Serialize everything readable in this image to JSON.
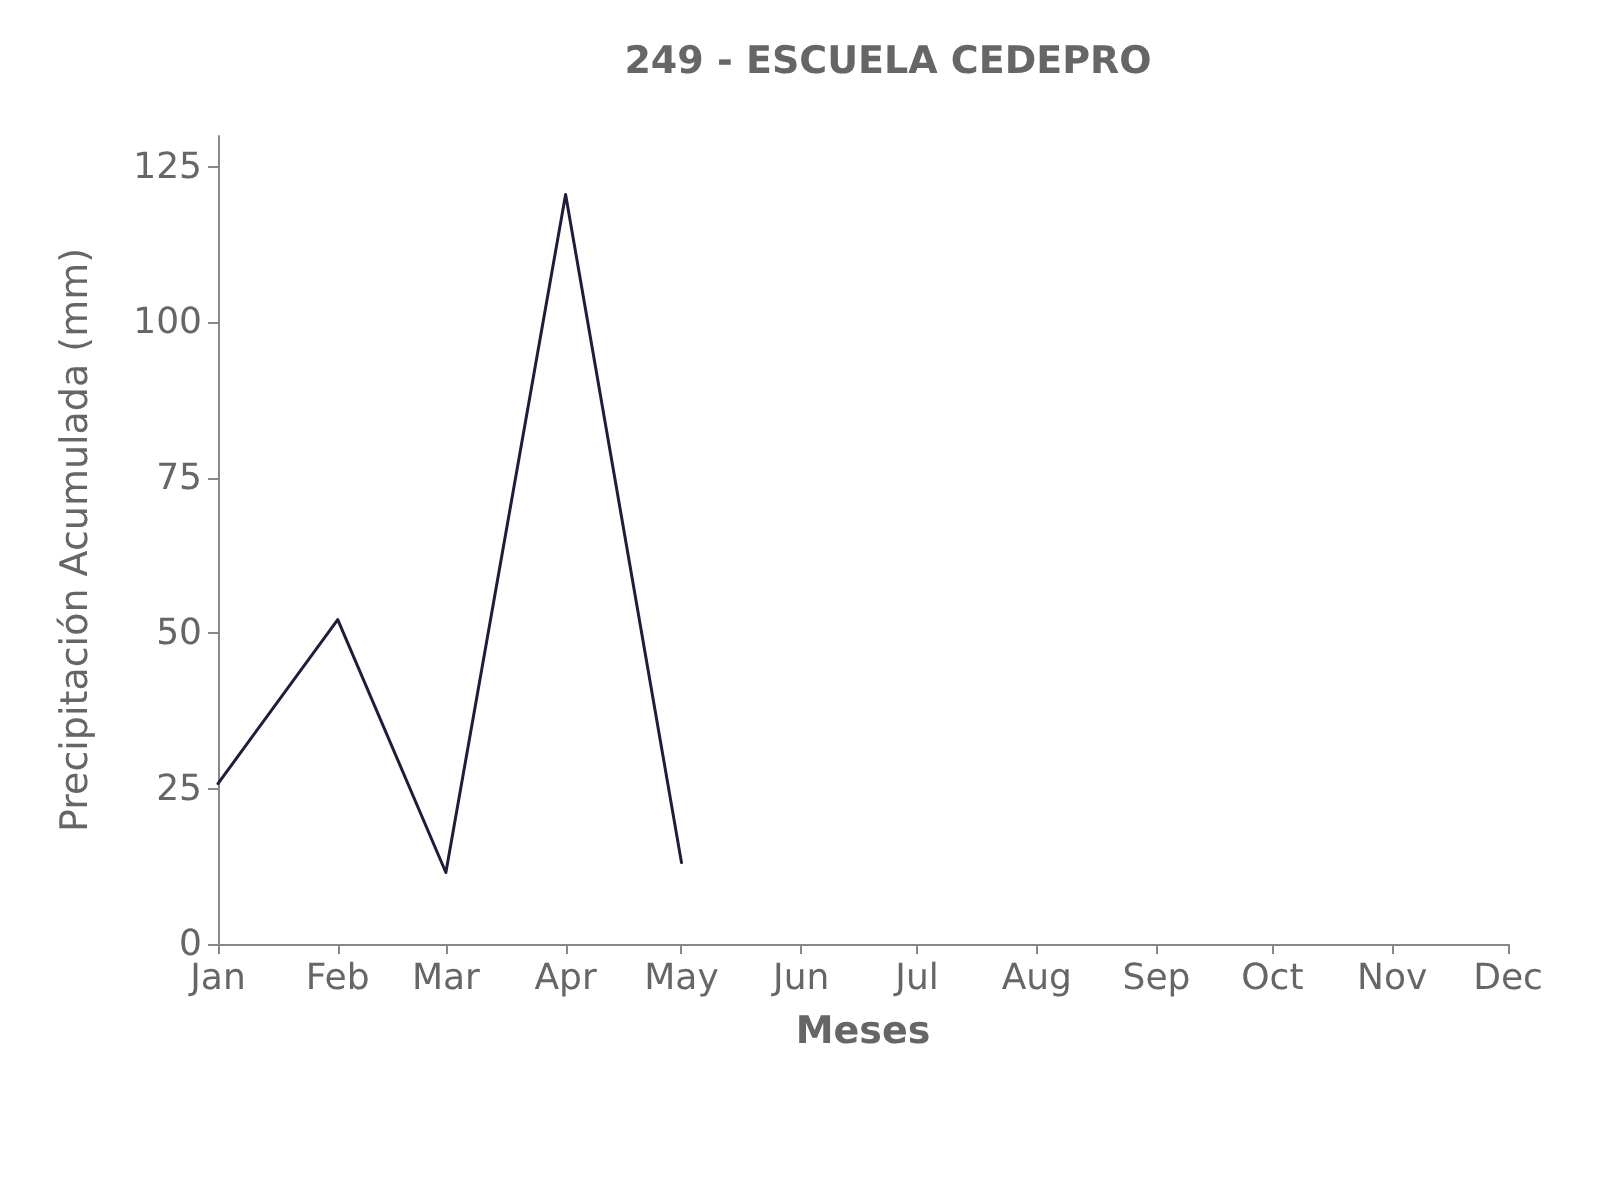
{
  "chart_data": {
    "type": "line",
    "title": "249 - ESCUELA CEDEPRO",
    "xlabel": "Meses",
    "ylabel": "Precipitación Acumulada (mm)",
    "x": [
      "--01-01",
      "--02-01",
      "--03-01",
      "--04-01",
      "--05-01"
    ],
    "series": [
      {
        "color": "#1f1d3d",
        "values": [
          25.8,
          52.2,
          11.5,
          120.6,
          13.1
        ]
      }
    ],
    "xlim": [
      "--01-01",
      "--12-01"
    ],
    "xticks": [
      {
        "value": "--01-01",
        "label": "Jan"
      },
      {
        "value": "--02-01",
        "label": "Feb"
      },
      {
        "value": "--03-01",
        "label": "Mar"
      },
      {
        "value": "--04-01",
        "label": "Apr"
      },
      {
        "value": "--05-01",
        "label": "May"
      },
      {
        "value": "--06-01",
        "label": "Jun"
      },
      {
        "value": "--07-01",
        "label": "Jul"
      },
      {
        "value": "--08-01",
        "label": "Aug"
      },
      {
        "value": "--09-01",
        "label": "Sep"
      },
      {
        "value": "--10-01",
        "label": "Oct"
      },
      {
        "value": "--11-01",
        "label": "Nov"
      },
      {
        "value": "--12-01",
        "label": "Dec"
      }
    ],
    "ylim": [
      0,
      130
    ],
    "yticks": [
      0,
      25,
      50,
      75,
      100,
      125
    ],
    "marker": "none",
    "line_style": "solid"
  }
}
